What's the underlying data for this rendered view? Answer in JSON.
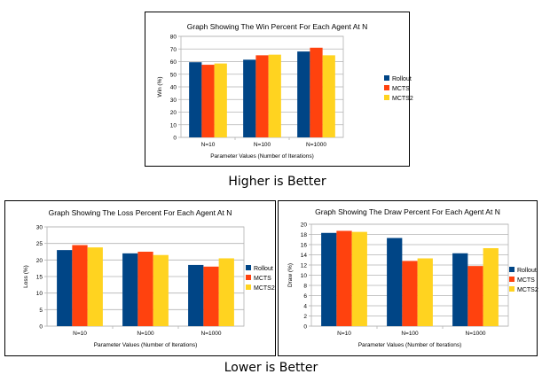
{
  "colors": {
    "Rollout": "#004586",
    "MCTS": "#ff420e",
    "MCTS2": "#ffd320",
    "grid": "#b3b3b3",
    "axis": "#b3b3b3"
  },
  "captions": {
    "top": "Higher is Better",
    "bottom": "Lower is Better"
  },
  "chart_data": [
    {
      "type": "bar",
      "title": "Graph Showing The Win Percent For Each Agent At N",
      "xlabel": "Parameter Values (Number of Iterations)",
      "ylabel": "Win (%)",
      "categories": [
        "N=10",
        "N=100",
        "N=1000"
      ],
      "ylim": [
        0,
        80
      ],
      "yticks": [
        0,
        10,
        20,
        30,
        40,
        50,
        60,
        70,
        80
      ],
      "grid": true,
      "legend": "right",
      "series": [
        {
          "name": "Rollout",
          "values": [
            59.5,
            61.5,
            68
          ]
        },
        {
          "name": "MCTS",
          "values": [
            57.5,
            65,
            71
          ]
        },
        {
          "name": "MCTS2",
          "values": [
            58.5,
            65.5,
            65
          ]
        }
      ]
    },
    {
      "type": "bar",
      "title": "Graph Showing The Loss Percent For Each Agent At N",
      "xlabel": "Parameter Values (Number of Iterations)",
      "ylabel": "Loss (%)",
      "categories": [
        "N=10",
        "N=100",
        "N=1000"
      ],
      "ylim": [
        0,
        30
      ],
      "yticks": [
        0,
        5,
        10,
        15,
        20,
        25,
        30
      ],
      "grid": true,
      "legend": "right",
      "series": [
        {
          "name": "Rollout",
          "values": [
            23,
            22,
            18.5
          ]
        },
        {
          "name": "MCTS",
          "values": [
            24.5,
            22.5,
            18
          ]
        },
        {
          "name": "MCTS2",
          "values": [
            23.8,
            21.5,
            20.5
          ]
        }
      ]
    },
    {
      "type": "bar",
      "title": "Graph Showing The Draw Percent For Each Agent At N",
      "xlabel": "Parameter Values (Number of Iterations)",
      "ylabel": "Draw (%)",
      "categories": [
        "N=10",
        "N=100",
        "N=1000"
      ],
      "ylim": [
        0,
        20
      ],
      "yticks": [
        0,
        2,
        4,
        6,
        8,
        10,
        12,
        14,
        16,
        18,
        20
      ],
      "grid": true,
      "legend": "right",
      "series": [
        {
          "name": "Rollout",
          "values": [
            18.3,
            17.3,
            14.3
          ]
        },
        {
          "name": "MCTS",
          "values": [
            18.7,
            12.8,
            11.8
          ]
        },
        {
          "name": "MCTS2",
          "values": [
            18.5,
            13.3,
            15.3
          ]
        }
      ]
    }
  ]
}
